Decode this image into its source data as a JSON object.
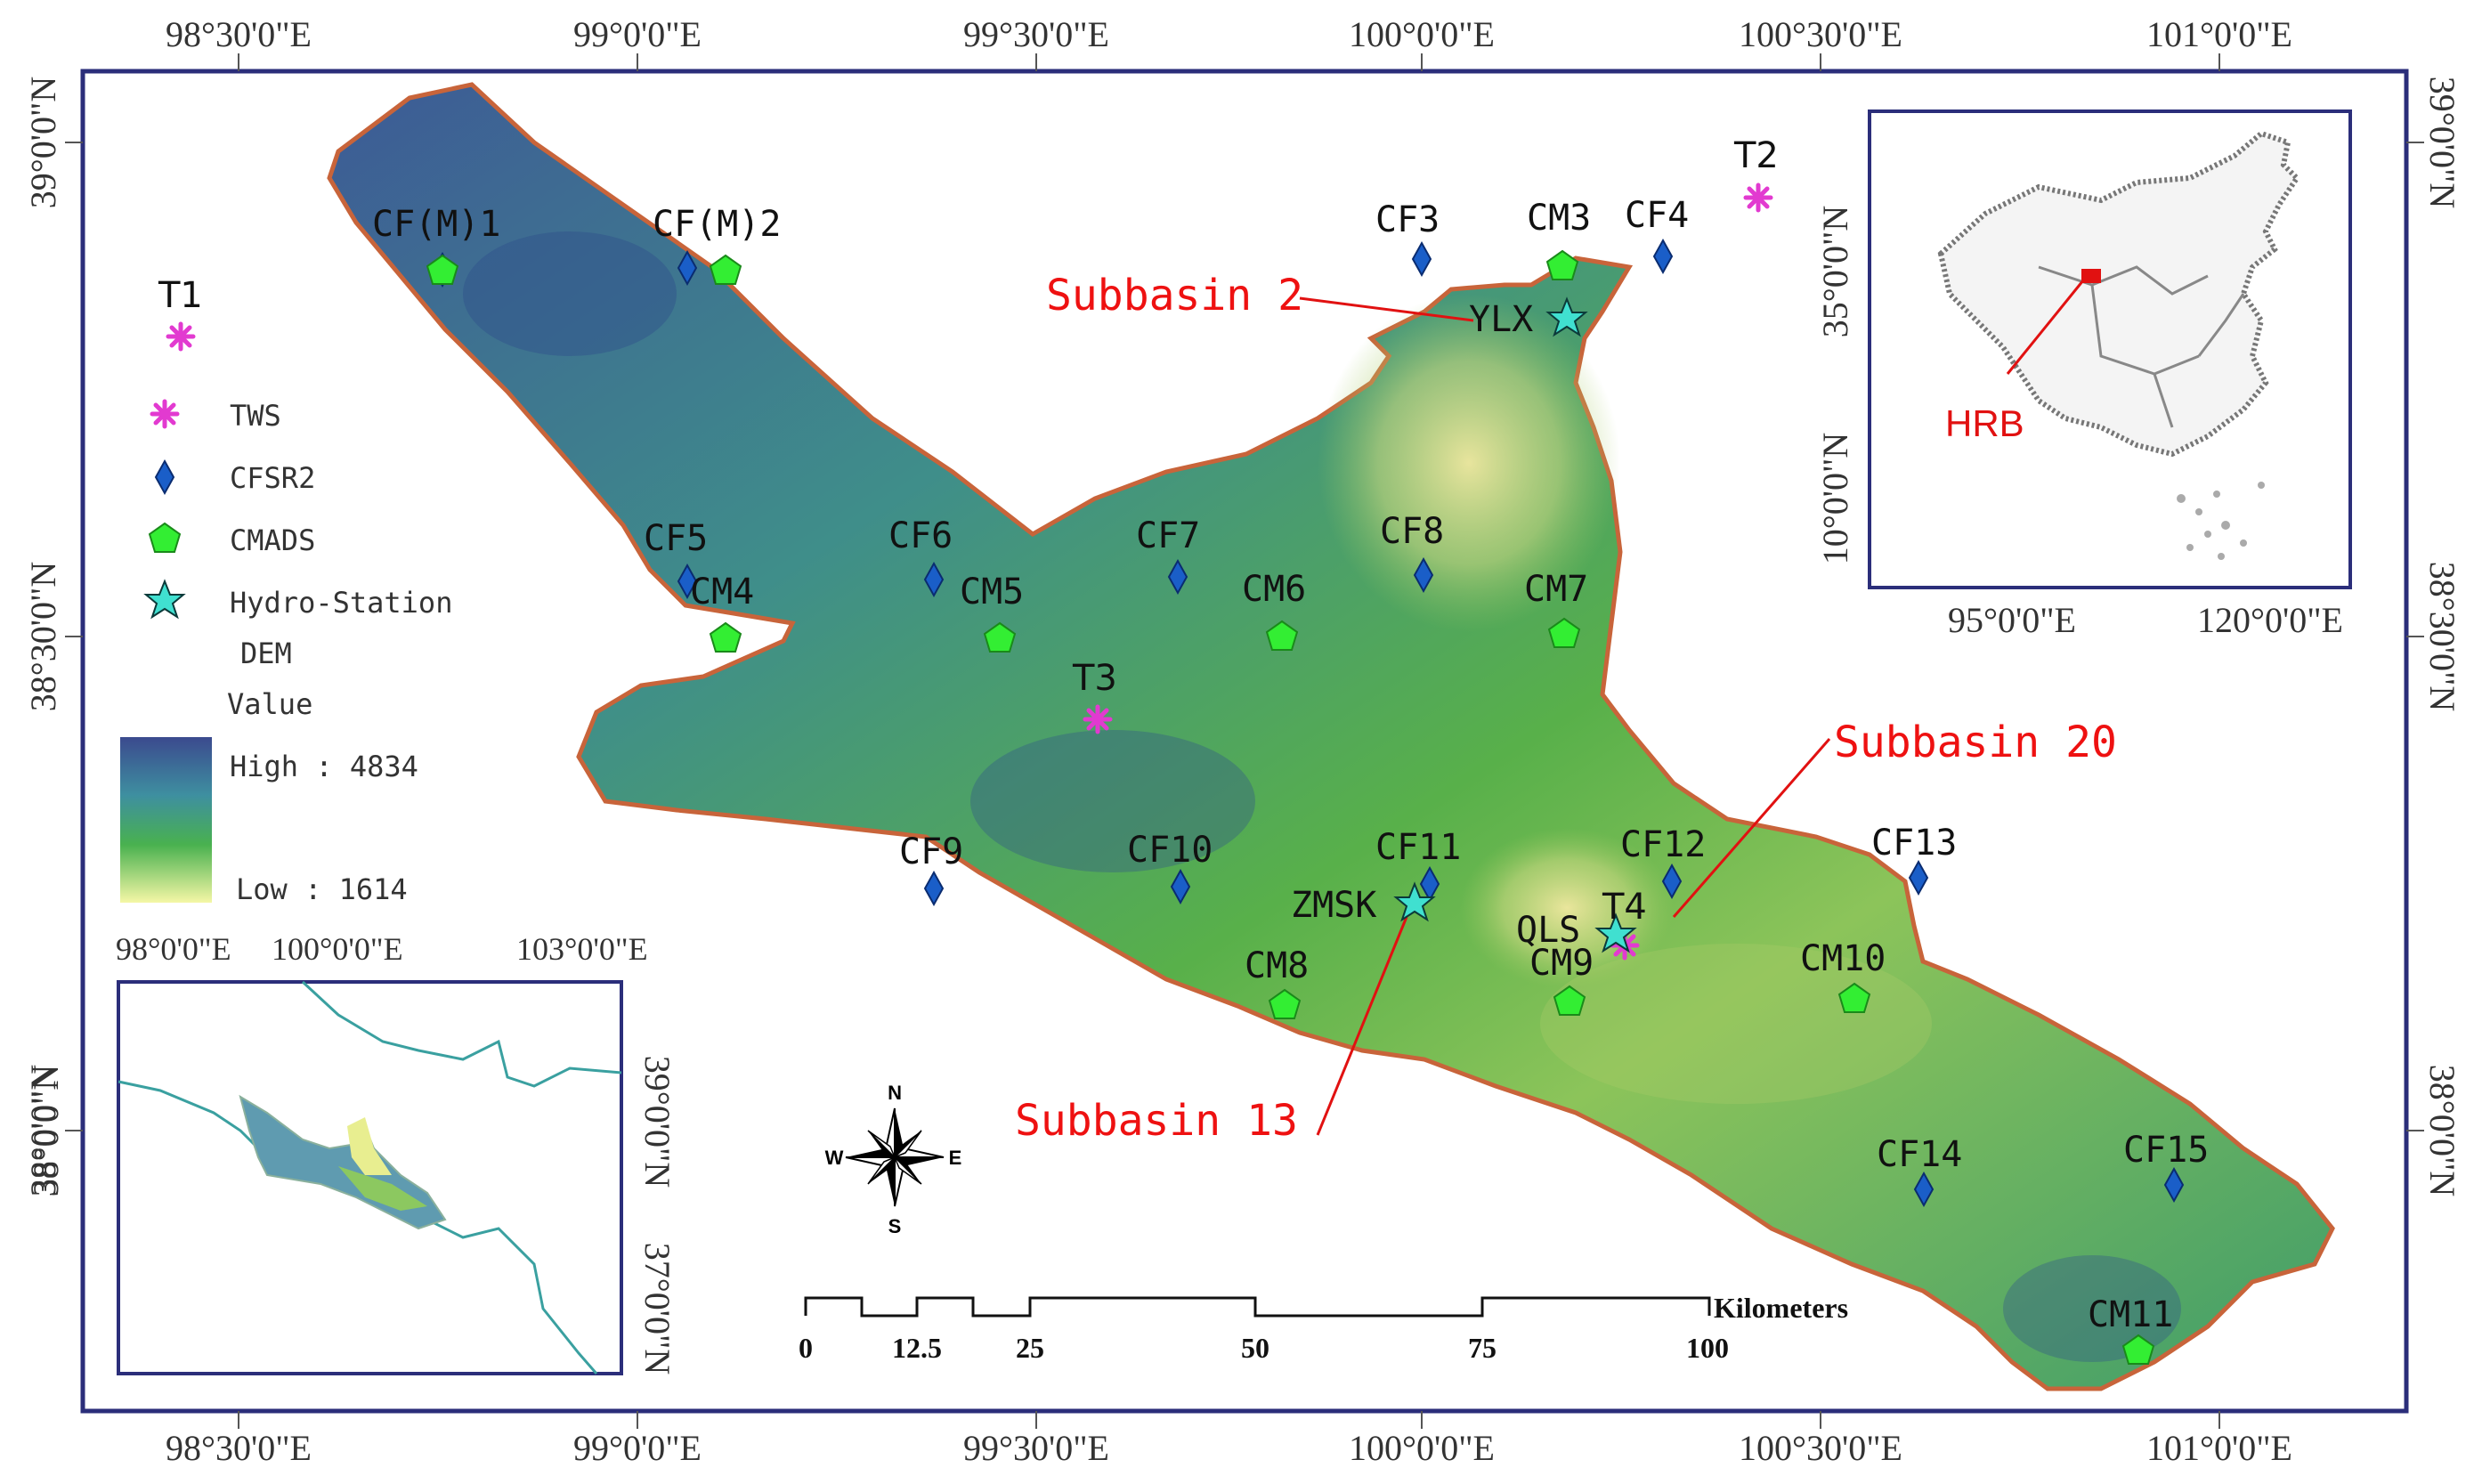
{
  "top_coords": [
    "98°30'0\"E",
    "99°0'0\"E",
    "99°30'0\"E",
    "100°0'0\"E",
    "100°30'0\"E",
    "101°0'0\"E"
  ],
  "bottom_coords": [
    "98°30'0\"E",
    "99°0'0\"E",
    "99°30'0\"E",
    "100°0'0\"E",
    "100°30'0\"E",
    "101°0'0\"E"
  ],
  "left_coords": [
    "39°0'0\"N",
    "38°30'0\"N",
    "38°0'0\"N"
  ],
  "right_coords": [
    "39°0'0\"N",
    "38°30'0\"N",
    "38°0'0\"N"
  ],
  "stations": {
    "cfm1": "CF(M)1",
    "cfm2": "CF(M)2",
    "cf3": "CF3",
    "cm3": "CM3",
    "cf4": "CF4",
    "t1": "T1",
    "t2": "T2",
    "t3": "T3",
    "t4": "T4",
    "cf5": "CF5",
    "cm4": "CM4",
    "cf6": "CF6",
    "cm5": "CM5",
    "cf7": "CF7",
    "cm6": "CM6",
    "cf8": "CF8",
    "cm7": "CM7",
    "cf9": "CF9",
    "cf10": "CF10",
    "cf11": "CF11",
    "cf12": "CF12",
    "cf13": "CF13",
    "cm8": "CM8",
    "cm9": "CM9",
    "cm10": "CM10",
    "cf14": "CF14",
    "cf15": "CF15",
    "cm11": "CM11",
    "ylx": "YLX",
    "zmsk": "ZMSK",
    "qls": "QLS"
  },
  "subbasins": {
    "s2": "Subbasin 2",
    "s20": "Subbasin 20",
    "s13": "Subbasin 13"
  },
  "legend": {
    "tws": "TWS",
    "cfsr": "CFSR2",
    "cmads": "CMADS",
    "hydro": "Hydro-Station",
    "dem": "DEM",
    "value": "Value",
    "high": "High : 4834",
    "low": "Low : 1614"
  },
  "inset_china": {
    "label": "HRB",
    "left_coords": [
      "35°0'0\"N",
      "10°0'0\"N"
    ],
    "right_coords": [
      "35°0'0\"N",
      "10°0'0\"N"
    ],
    "bottom_coords": [
      "95°0'0\"E",
      "120°0'0\"E"
    ]
  },
  "inset_local": {
    "top_coords": [
      "98°0'0\"E",
      "100°0'0\"E",
      "103°0'0\"E"
    ],
    "left_coords": [
      "38°0'0\"N"
    ],
    "right_coords": [
      "39°0'0\"N",
      "37°0'0\"N"
    ]
  },
  "compass": {
    "n": "N",
    "s": "S",
    "e": "E",
    "w": "W"
  },
  "scalebar": {
    "unit": "Kilometers",
    "ticks": [
      "0",
      "12.5",
      "25",
      "50",
      "75",
      "100"
    ]
  },
  "colors": {
    "frame": "#2b2e7a",
    "basin_high": "#3c4c8e",
    "basin_mid": "#3ea86a",
    "basin_low": "#f2f2a0",
    "outline": "#c8643a",
    "tws": "#e23ad0",
    "cfsr": "#1a5ec8",
    "cmads": "#33ee33",
    "hydro": "#40e0d0",
    "label_red": "#e11111"
  }
}
